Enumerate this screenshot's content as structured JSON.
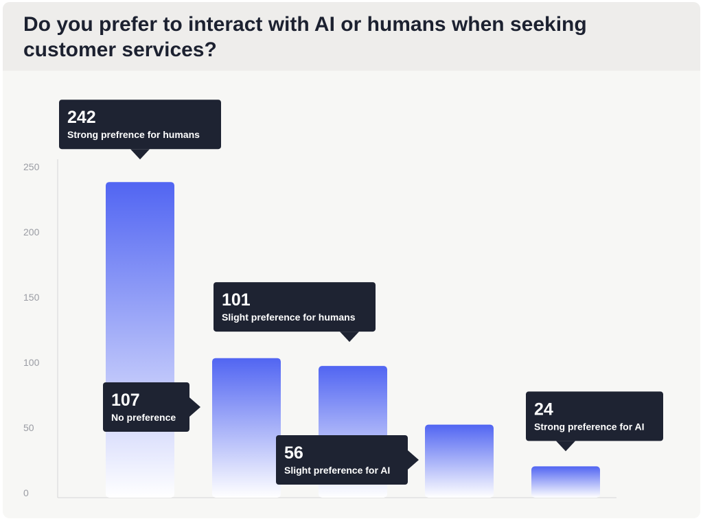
{
  "chart_data": {
    "type": "bar",
    "title": "Do you prefer to interact with AI or humans when seeking customer services?",
    "categories": [
      "Strong prefrence for humans",
      "No preference",
      "Slight preference for humans",
      "Slight preference for AI",
      "Strong preference for AI"
    ],
    "values": [
      242,
      107,
      101,
      56,
      24
    ],
    "yticks": [
      0,
      50,
      100,
      150,
      200,
      250
    ],
    "ylim": [
      0,
      250
    ],
    "grid": false,
    "bar_gradient": [
      "#5165f2",
      "#ffffff"
    ],
    "tooltip_color": "#1e2332"
  }
}
